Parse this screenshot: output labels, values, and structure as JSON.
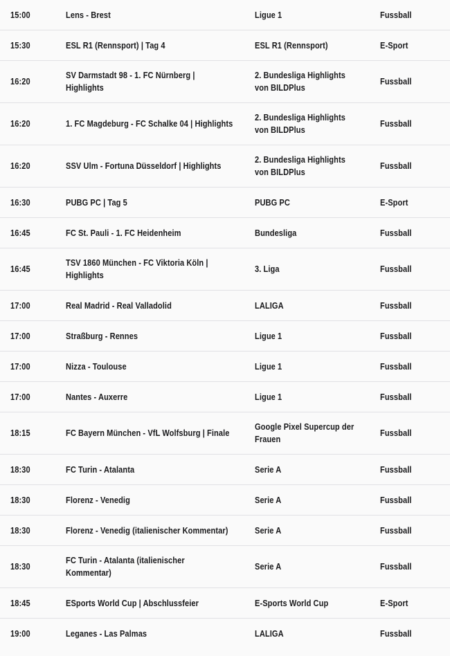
{
  "colors": {
    "background": "#fafafa",
    "divider": "#e1e1e4",
    "text": "#1a1a1c"
  },
  "table": {
    "rows": [
      {
        "time": "15:00",
        "event": "Lens - Brest",
        "league": "Ligue 1",
        "sport": "Fussball"
      },
      {
        "time": "15:30",
        "event": "ESL R1 (Rennsport) | Tag 4",
        "league": "ESL R1 (Rennsport)",
        "sport": "E-Sport"
      },
      {
        "time": "16:20",
        "event": "SV Darmstadt 98 - 1. FC Nürnberg |\nHighlights",
        "league": "2. Bundesliga Highlights\nvon BILDPlus",
        "sport": "Fussball"
      },
      {
        "time": "16:20",
        "event": "1. FC Magdeburg - FC Schalke 04 | Highlights",
        "league": "2. Bundesliga Highlights\nvon BILDPlus",
        "sport": "Fussball"
      },
      {
        "time": "16:20",
        "event": "SSV Ulm - Fortuna Düsseldorf | Highlights",
        "league": "2. Bundesliga Highlights\nvon BILDPlus",
        "sport": "Fussball"
      },
      {
        "time": "16:30",
        "event": "PUBG PC | Tag 5",
        "league": "PUBG PC",
        "sport": "E-Sport"
      },
      {
        "time": "16:45",
        "event": "FC St. Pauli - 1. FC Heidenheim",
        "league": "Bundesliga",
        "sport": "Fussball"
      },
      {
        "time": "16:45",
        "event": "TSV 1860 München - FC Viktoria Köln |\nHighlights",
        "league": "3. Liga",
        "sport": "Fussball"
      },
      {
        "time": "17:00",
        "event": "Real Madrid - Real Valladolid",
        "league": "LALIGA",
        "sport": "Fussball"
      },
      {
        "time": "17:00",
        "event": "Straßburg - Rennes",
        "league": "Ligue 1",
        "sport": "Fussball"
      },
      {
        "time": "17:00",
        "event": "Nizza - Toulouse",
        "league": "Ligue 1",
        "sport": "Fussball"
      },
      {
        "time": "17:00",
        "event": "Nantes - Auxerre",
        "league": "Ligue 1",
        "sport": "Fussball"
      },
      {
        "time": "18:15",
        "event": "FC Bayern München - VfL Wolfsburg | Finale",
        "league": "Google Pixel Supercup der\nFrauen",
        "sport": "Fussball"
      },
      {
        "time": "18:30",
        "event": "FC Turin - Atalanta",
        "league": "Serie A",
        "sport": "Fussball"
      },
      {
        "time": "18:30",
        "event": "Florenz - Venedig",
        "league": "Serie A",
        "sport": "Fussball"
      },
      {
        "time": "18:30",
        "event": "Florenz - Venedig (italienischer Kommentar)",
        "league": "Serie A",
        "sport": "Fussball"
      },
      {
        "time": "18:30",
        "event": "FC Turin - Atalanta (italienischer\nKommentar)",
        "league": "Serie A",
        "sport": "Fussball"
      },
      {
        "time": "18:45",
        "event": "ESports World Cup | Abschlussfeier",
        "league": "E-Sports World Cup",
        "sport": "E-Sport"
      },
      {
        "time": "19:00",
        "event": "Leganes - Las Palmas",
        "league": "LALIGA",
        "sport": "Fussball"
      }
    ]
  }
}
